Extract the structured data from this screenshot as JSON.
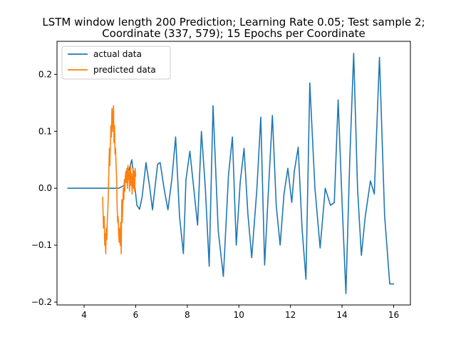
{
  "chart_data": {
    "type": "line",
    "title_lines": [
      "LSTM window length 200 Prediction; Learning Rate 0.05; Test sample 2;",
      "Coordinate (337, 579); 15 Epochs per Coordinate"
    ],
    "xlabel": "",
    "ylabel": "",
    "xlim": [
      2.95,
      16.65
    ],
    "ylim": [
      -0.205,
      0.258
    ],
    "xticks": [
      4,
      6,
      8,
      10,
      12,
      14,
      16
    ],
    "xtick_labels": [
      "4",
      "6",
      "8",
      "10",
      "12",
      "14",
      "16"
    ],
    "yticks": [
      -0.2,
      -0.1,
      0.0,
      0.1,
      0.2
    ],
    "ytick_labels": [
      "−0.2",
      "−0.1",
      "0.0",
      "0.1",
      "0.2"
    ],
    "grid": false,
    "legend_position": "upper-left",
    "series": [
      {
        "name": "actual data",
        "color": "#1f77b4",
        "x": [
          3.35,
          5.35,
          5.55,
          5.7,
          5.85,
          5.95,
          6.05,
          6.15,
          6.25,
          6.4,
          6.55,
          6.65,
          6.85,
          6.95,
          7.1,
          7.25,
          7.4,
          7.55,
          7.7,
          7.85,
          7.95,
          8.1,
          8.25,
          8.4,
          8.55,
          8.7,
          8.85,
          9.0,
          9.2,
          9.4,
          9.6,
          9.75,
          9.9,
          10.05,
          10.2,
          10.35,
          10.5,
          10.7,
          10.85,
          11.0,
          11.15,
          11.3,
          11.45,
          11.6,
          11.75,
          11.9,
          12.05,
          12.15,
          12.3,
          12.45,
          12.6,
          12.75,
          12.95,
          13.15,
          13.35,
          13.55,
          13.7,
          13.85,
          14.0,
          14.15,
          14.3,
          14.45,
          14.6,
          14.75,
          14.9,
          15.1,
          15.25,
          15.45,
          15.65,
          15.85,
          16.02
        ],
        "y": [
          0.0,
          0.0,
          0.005,
          0.025,
          0.05,
          0.01,
          -0.03,
          -0.037,
          -0.015,
          0.045,
          0.0,
          -0.038,
          0.042,
          0.045,
          0.0,
          -0.038,
          0.015,
          0.09,
          -0.05,
          -0.115,
          0.015,
          0.065,
          0.0,
          -0.065,
          0.1,
          0.0,
          -0.137,
          0.145,
          -0.075,
          -0.155,
          0.025,
          0.09,
          -0.1,
          0.01,
          0.07,
          -0.045,
          -0.122,
          0.0,
          0.125,
          -0.135,
          0.0,
          0.128,
          -0.03,
          -0.1,
          -0.01,
          0.035,
          -0.025,
          0.03,
          0.072,
          -0.07,
          -0.16,
          0.185,
          0.0,
          -0.105,
          0.0,
          -0.03,
          -0.025,
          0.155,
          -0.025,
          -0.185,
          0.05,
          0.237,
          0.0,
          -0.118,
          -0.05,
          0.013,
          -0.01,
          0.23,
          -0.048,
          -0.168,
          -0.168
        ]
      },
      {
        "name": "predicted data",
        "color": "#ff7f0e",
        "x": [
          4.72,
          4.75,
          4.78,
          4.8,
          4.82,
          4.84,
          4.86,
          4.88,
          4.9,
          4.92,
          4.94,
          4.96,
          4.98,
          5.0,
          5.02,
          5.04,
          5.06,
          5.08,
          5.1,
          5.12,
          5.14,
          5.16,
          5.18,
          5.2,
          5.22,
          5.24,
          5.26,
          5.28,
          5.3,
          5.32,
          5.34,
          5.36,
          5.38,
          5.4,
          5.42,
          5.44,
          5.46,
          5.48,
          5.5,
          5.52,
          5.54,
          5.56,
          5.58,
          5.6,
          5.62,
          5.64,
          5.66,
          5.68,
          5.7,
          5.72,
          5.74,
          5.76,
          5.78,
          5.8,
          5.82,
          5.84,
          5.86,
          5.88,
          5.9,
          5.92,
          5.94,
          5.96,
          5.98,
          6.0
        ],
        "y": [
          -0.015,
          -0.07,
          -0.05,
          -0.1,
          -0.08,
          -0.115,
          -0.07,
          -0.09,
          -0.06,
          -0.04,
          -0.01,
          0.03,
          0.07,
          0.04,
          0.075,
          0.11,
          0.09,
          0.14,
          0.1,
          0.13,
          0.145,
          0.08,
          0.11,
          0.06,
          0.07,
          0.04,
          0.02,
          -0.03,
          -0.06,
          -0.05,
          -0.08,
          -0.095,
          -0.07,
          -0.1,
          -0.06,
          -0.115,
          -0.02,
          -0.06,
          -0.03,
          0.0,
          -0.02,
          0.015,
          -0.005,
          0.02,
          0.03,
          0.01,
          0.035,
          0.0,
          0.04,
          0.015,
          0.03,
          -0.005,
          0.02,
          0.04,
          0.005,
          0.025,
          -0.01,
          0.015,
          0.035,
          0.0,
          0.03,
          -0.005,
          0.035,
          0.02
        ]
      }
    ]
  }
}
